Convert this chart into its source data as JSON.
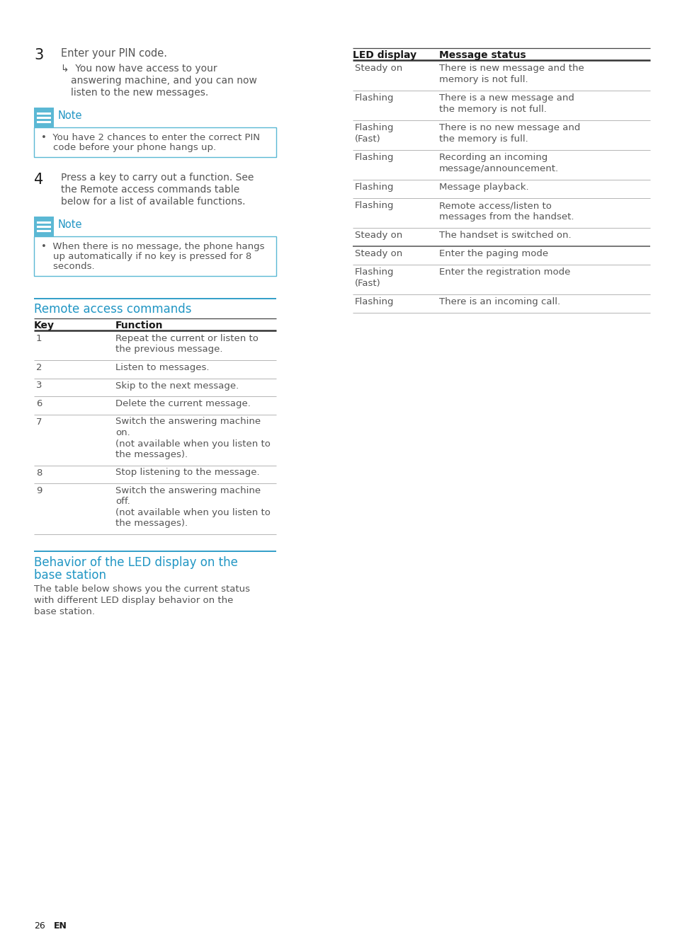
{
  "page_bg": "#ffffff",
  "text_color": "#555555",
  "header_color": "#2196C4",
  "dark_text": "#1a1a1a",
  "note_blue": "#5BB8D4",
  "step3_num": "3",
  "step3_text": "Enter your PIN code.",
  "note1_title": "Note",
  "note1_lines": [
    "You have 2 chances to enter the correct PIN",
    "code before your phone hangs up."
  ],
  "step4_num": "4",
  "step4_lines": [
    "Press a key to carry out a function. See",
    "the Remote access commands table",
    "below for a list of available functions."
  ],
  "note2_title": "Note",
  "note2_lines": [
    "When there is no message, the phone hangs",
    "up automatically if no key is pressed for 8",
    "seconds."
  ],
  "remote_title": "Remote access commands",
  "remote_col1": "Key",
  "remote_col2": "Function",
  "remote_rows": [
    {
      "key": "1",
      "func": [
        "Repeat the current or listen to",
        "the previous message."
      ]
    },
    {
      "key": "2",
      "func": [
        "Listen to messages."
      ]
    },
    {
      "key": "3",
      "func": [
        "Skip to the next message."
      ]
    },
    {
      "key": "6",
      "func": [
        "Delete the current message."
      ]
    },
    {
      "key": "7",
      "func": [
        "Switch the answering machine",
        "on.",
        "(not available when you listen to",
        "the messages)."
      ]
    },
    {
      "key": "8",
      "func": [
        "Stop listening to the message."
      ]
    },
    {
      "key": "9",
      "func": [
        "Switch the answering machine",
        "off.",
        "(not available when you listen to",
        "the messages)."
      ]
    }
  ],
  "led_col1": "LED display",
  "led_col2": "Message status",
  "led_rows": [
    {
      "disp": [
        "Steady on"
      ],
      "stat": [
        "There is new message and the",
        "memory is not full."
      ]
    },
    {
      "disp": [
        "Flashing"
      ],
      "stat": [
        "There is a new message and",
        "the memory is not full."
      ]
    },
    {
      "disp": [
        "Flashing",
        "(Fast)"
      ],
      "stat": [
        "There is no new message and",
        "the memory is full."
      ]
    },
    {
      "disp": [
        "Flashing"
      ],
      "stat": [
        "Recording an incoming",
        "message/announcement."
      ]
    },
    {
      "disp": [
        "Flashing"
      ],
      "stat": [
        "Message playback."
      ]
    },
    {
      "disp": [
        "Flashing"
      ],
      "stat": [
        "Remote access/listen to",
        "messages from the handset."
      ]
    },
    {
      "disp": [
        "Steady on"
      ],
      "stat": [
        "The handset is switched on."
      ]
    },
    {
      "disp": [
        "Steady on"
      ],
      "stat": [
        "Enter the paging mode"
      ]
    },
    {
      "disp": [
        "Flashing",
        "(Fast)"
      ],
      "stat": [
        "Enter the registration mode"
      ]
    },
    {
      "disp": [
        "Flashing"
      ],
      "stat": [
        "There is an incoming call."
      ]
    }
  ],
  "led_section_title1": "Behavior of the LED display on the",
  "led_section_title2": "base station",
  "led_section_lines": [
    "The table below shows you the current status",
    "with different LED display behavior on the",
    "base station."
  ],
  "page_num": "26",
  "page_lang": "EN"
}
